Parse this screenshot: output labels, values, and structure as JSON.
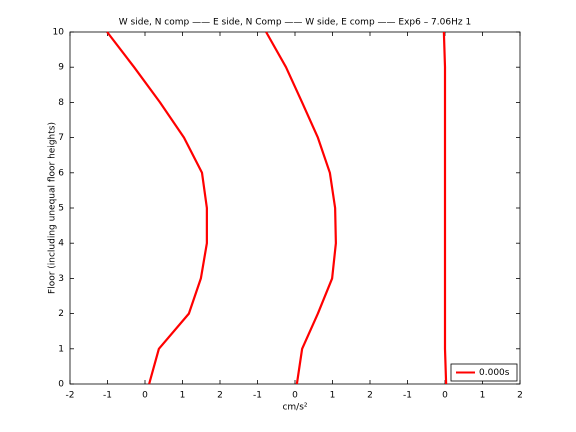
{
  "chart_data": {
    "type": "line",
    "title": "W side, N comp —— E side, N Comp —— W side, E comp —— Exp6 – 7.06Hz 1",
    "xlabel": "cm/s²",
    "ylabel": "Floor (including unequal floor heights)",
    "xlim": [
      0,
      12
    ],
    "xticks": [
      {
        "value": 0,
        "label": "-2"
      },
      {
        "value": 1,
        "label": "-1"
      },
      {
        "value": 2,
        "label": "0"
      },
      {
        "value": 3,
        "label": "1"
      },
      {
        "value": 4,
        "label": "2"
      },
      {
        "value": 5,
        "label": "-1"
      },
      {
        "value": 6,
        "label": "0"
      },
      {
        "value": 7,
        "label": "1"
      },
      {
        "value": 8,
        "label": "2"
      },
      {
        "value": 9,
        "label": "-1"
      },
      {
        "value": 10,
        "label": "0"
      },
      {
        "value": 11,
        "label": "1"
      },
      {
        "value": 12,
        "label": "2"
      }
    ],
    "ylim": [
      0,
      10
    ],
    "yticks": [
      0,
      1,
      2,
      3,
      4,
      5,
      6,
      7,
      8,
      9,
      10
    ],
    "legend": "lower right",
    "series": [
      {
        "name": "0.000s",
        "color": "#ff0000",
        "x": [
          2.11,
          2.37,
          3.17,
          3.49,
          3.65,
          3.65,
          3.52,
          3.04,
          2.4,
          1.71,
          0.99,
          null,
          6.05,
          6.19,
          6.61,
          6.99,
          7.09,
          7.07,
          6.93,
          6.61,
          6.19,
          5.76,
          5.23,
          null,
          10.03,
          10.0,
          10.0,
          10.0,
          10.0,
          10.0,
          10.0,
          10.0,
          10.0,
          10.0,
          9.97
        ],
        "values": [
          0,
          1,
          2,
          3,
          4,
          5,
          6,
          7,
          8,
          9,
          10,
          null,
          0,
          1,
          2,
          3,
          4,
          5,
          6,
          7,
          8,
          9,
          10,
          null,
          0,
          1,
          2,
          3,
          4,
          5,
          6,
          7,
          8,
          9,
          10
        ]
      }
    ]
  }
}
